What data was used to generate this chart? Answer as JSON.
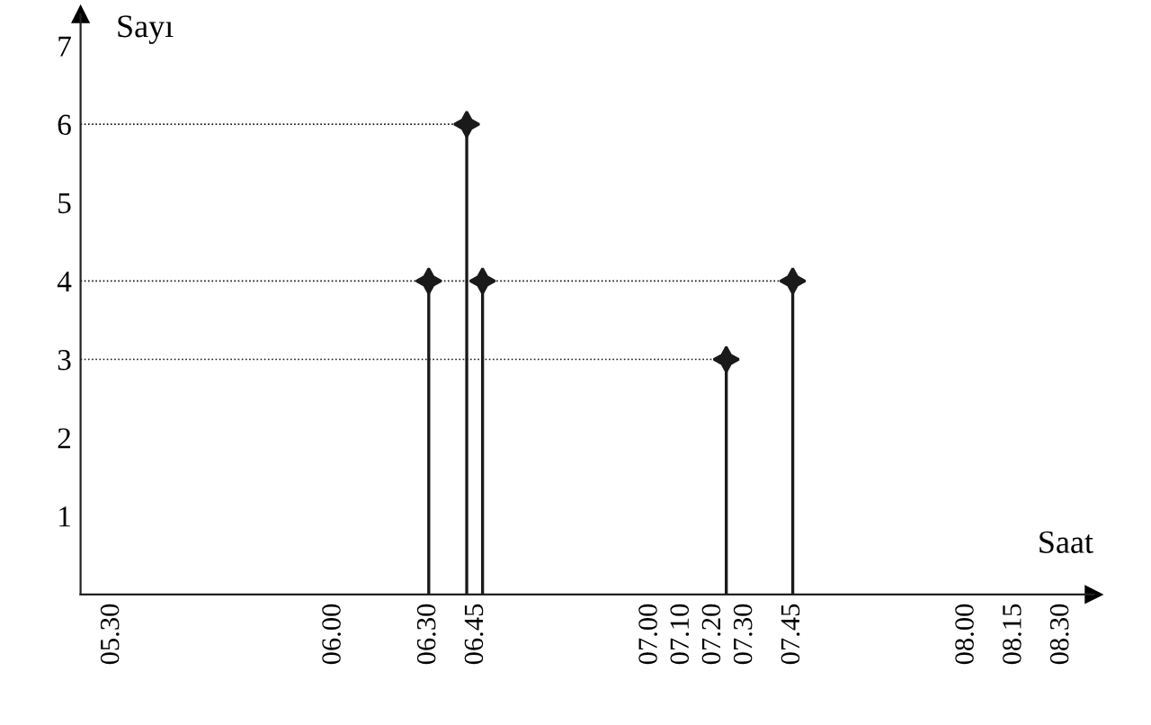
{
  "chart_data": {
    "type": "lollipop",
    "xlabel": "Saat",
    "ylabel": "Sayı",
    "x": [
      6.3,
      6.42,
      6.47,
      7.24,
      7.45
    ],
    "series": [
      {
        "color": "#1a1a1a",
        "values": [
          4,
          6,
          4,
          3,
          4
        ],
        "marker": "cross"
      },
      {
        "type": "line",
        "line_style": "dotted",
        "color": "#1a1a1a",
        "x": [
          5.2,
          6.42
        ],
        "values": [
          6,
          6
        ]
      },
      {
        "type": "line",
        "line_style": "dotted",
        "color": "#1a1a1a",
        "x": [
          5.2,
          7.45
        ],
        "values": [
          4,
          4
        ]
      },
      {
        "type": "line",
        "line_style": "dotted",
        "color": "#1a1a1a",
        "x": [
          5.2,
          7.24
        ],
        "values": [
          3,
          3
        ]
      }
    ],
    "xlim": [
      5.2,
      8.4
    ],
    "xticks": [
      {
        "value": 5.3,
        "label": "05.30"
      },
      {
        "value": 6.0,
        "label": "06.00"
      },
      {
        "value": 6.3,
        "label": "06.30"
      },
      {
        "value": 6.45,
        "label": "06.45"
      },
      {
        "value": 7.0,
        "label": "07.00"
      },
      {
        "value": 7.1,
        "label": "07.10"
      },
      {
        "value": 7.2,
        "label": "07.20"
      },
      {
        "value": 7.3,
        "label": "07.30"
      },
      {
        "value": 7.45,
        "label": "07.45"
      },
      {
        "value": 8.0,
        "label": "08.00"
      },
      {
        "value": 8.15,
        "label": "08.15"
      },
      {
        "value": 8.3,
        "label": "08.30"
      }
    ],
    "ylim": [
      0,
      7.4
    ],
    "yticks": [
      1,
      2,
      3,
      4,
      5,
      6,
      7
    ]
  }
}
